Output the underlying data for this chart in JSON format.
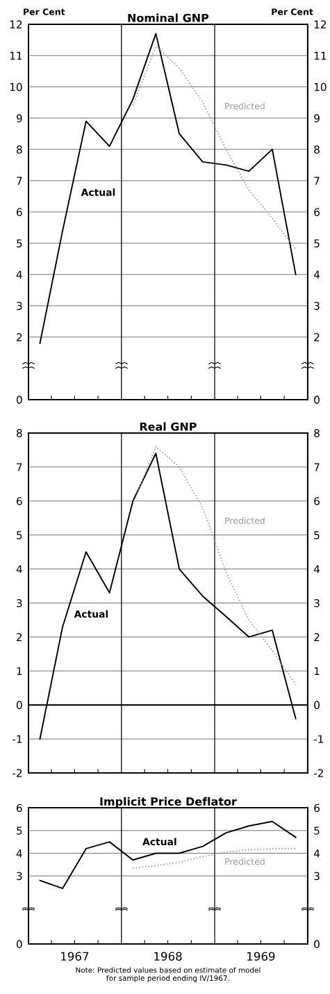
{
  "chart_data": [
    {
      "type": "line",
      "title": "Nominal GNP",
      "ylabel": "Per Cent",
      "y2label": "Per Cent",
      "xlim": [
        "1967-01-01",
        "1970-01-01"
      ],
      "xticks": [
        {
          "value": "1967-04-01",
          "label": null
        },
        {
          "value": "1967-07-01",
          "label": null
        },
        {
          "value": "1967-10-01",
          "label": null
        },
        {
          "value": "1968-04-01",
          "label": null
        },
        {
          "value": "1968-07-01",
          "label": null
        },
        {
          "value": "1968-10-01",
          "label": null
        },
        {
          "value": "1969-04-01",
          "label": null
        },
        {
          "value": "1969-07-01",
          "label": null
        },
        {
          "value": "1969-10-01",
          "label": null
        }
      ],
      "ylim": [
        0,
        12
      ],
      "yticks": [
        0,
        2,
        3,
        4,
        5,
        6,
        7,
        8,
        9,
        10,
        11,
        12
      ],
      "y2lim": [
        0,
        12
      ],
      "y2ticks": [
        0,
        2,
        3,
        4,
        5,
        6,
        7,
        8,
        9,
        10,
        11,
        12
      ],
      "tick_labels": "y",
      "grid": "y",
      "ref_lines": [
        {
          "axis": "x",
          "value": "1968-01-01",
          "color": "#000000"
        },
        {
          "axis": "x",
          "value": "1969-01-01",
          "color": "#000000"
        }
      ],
      "x": [
        "1967-02-15",
        "1967-05-15",
        "1967-08-15",
        "1967-11-15",
        "1968-02-15",
        "1968-05-15",
        "1968-08-15",
        "1968-11-15",
        "1969-02-15",
        "1969-05-15",
        "1969-08-15",
        "1969-11-15"
      ],
      "series": [
        {
          "color": "#000000",
          "line_style": "solid",
          "values": [
            1.8,
            5.4,
            8.9,
            8.1,
            9.6,
            11.7,
            8.5,
            7.6,
            7.5,
            7.3,
            8.0,
            4.0
          ]
        },
        {
          "color": "#999999",
          "line_style": "dotted",
          "values": [
            null,
            null,
            null,
            null,
            9.4,
            11.3,
            10.6,
            9.5,
            8.0,
            6.7,
            5.8,
            4.8
          ]
        }
      ],
      "annotations": [
        "Actual",
        "Predicted"
      ]
    },
    {
      "type": "line",
      "title": "Real GNP",
      "xlim": [
        "1967-01-01",
        "1970-01-01"
      ],
      "xticks": [
        {
          "value": "1967-04-01",
          "label": null
        },
        {
          "value": "1967-07-01",
          "label": null
        },
        {
          "value": "1967-10-01",
          "label": null
        },
        {
          "value": "1968-04-01",
          "label": null
        },
        {
          "value": "1968-07-01",
          "label": null
        },
        {
          "value": "1968-10-01",
          "label": null
        },
        {
          "value": "1969-04-01",
          "label": null
        },
        {
          "value": "1969-07-01",
          "label": null
        },
        {
          "value": "1969-10-01",
          "label": null
        }
      ],
      "ylim": [
        -2,
        8
      ],
      "yticks": [
        -2,
        -1,
        0,
        1,
        2,
        3,
        4,
        5,
        6,
        7,
        8
      ],
      "y2lim": [
        -2,
        8
      ],
      "y2ticks": [
        -2,
        -1,
        0,
        1,
        2,
        3,
        4,
        5,
        6,
        7,
        8
      ],
      "tick_labels": "y",
      "grid": "y",
      "ref_lines": [
        {
          "axis": "x",
          "value": "1968-01-01",
          "color": "#000000"
        },
        {
          "axis": "x",
          "value": "1969-01-01",
          "color": "#000000"
        },
        {
          "axis": "y",
          "value": 0,
          "color": "#000000"
        }
      ],
      "x": [
        "1967-02-15",
        "1967-05-15",
        "1967-08-15",
        "1967-11-15",
        "1968-02-15",
        "1968-05-15",
        "1968-08-15",
        "1968-11-15",
        "1969-02-15",
        "1969-05-15",
        "1969-08-15",
        "1969-11-15"
      ],
      "series": [
        {
          "color": "#000000",
          "line_style": "solid",
          "values": [
            -1.0,
            2.3,
            4.5,
            3.3,
            6.0,
            7.4,
            4.0,
            3.2,
            2.6,
            2.0,
            2.2,
            -0.4
          ]
        },
        {
          "color": "#999999",
          "line_style": "dotted",
          "values": [
            null,
            null,
            null,
            null,
            5.9,
            7.6,
            7.0,
            5.8,
            3.9,
            2.5,
            1.6,
            0.6
          ]
        }
      ],
      "annotations": [
        "Actual",
        "Predicted"
      ]
    },
    {
      "type": "line",
      "title": "Implicit Price Deflator",
      "xlim": [
        "1967-01-01",
        "1970-01-01"
      ],
      "xticks": [
        {
          "value": "1967-04-01",
          "label": null
        },
        {
          "value": "1967-07-01",
          "label": "1967"
        },
        {
          "value": "1967-10-01",
          "label": null
        },
        {
          "value": "1968-04-01",
          "label": null
        },
        {
          "value": "1968-07-01",
          "label": "1968"
        },
        {
          "value": "1968-10-01",
          "label": null
        },
        {
          "value": "1969-04-01",
          "label": null
        },
        {
          "value": "1969-07-01",
          "label": "1969"
        },
        {
          "value": "1969-10-01",
          "label": null
        }
      ],
      "ylim": [
        0,
        6
      ],
      "yticks": [
        0,
        3,
        4,
        5,
        6
      ],
      "y2lim": [
        0,
        6
      ],
      "y2ticks": [
        0,
        3,
        4,
        5,
        6
      ],
      "grid": "y",
      "ref_lines": [
        {
          "axis": "x",
          "value": "1968-01-01",
          "color": "#000000"
        },
        {
          "axis": "x",
          "value": "1969-01-01",
          "color": "#000000"
        }
      ],
      "x": [
        "1967-02-15",
        "1967-05-15",
        "1967-08-15",
        "1967-11-15",
        "1968-02-15",
        "1968-05-15",
        "1968-08-15",
        "1968-11-15",
        "1969-02-15",
        "1969-05-15",
        "1969-08-15",
        "1969-11-15"
      ],
      "series": [
        {
          "color": "#000000",
          "line_style": "solid",
          "values": [
            2.8,
            2.45,
            4.2,
            4.5,
            3.7,
            4.0,
            4.0,
            4.3,
            4.9,
            5.2,
            5.4,
            4.7
          ]
        },
        {
          "color": "#999999",
          "line_style": "dotted",
          "values": [
            null,
            null,
            null,
            null,
            3.35,
            3.45,
            3.6,
            3.85,
            4.05,
            4.15,
            4.2,
            4.2
          ]
        }
      ],
      "annotations": [
        "Actual",
        "Predicted",
        "Note: Predicted values based on estimate of model\nfor sample period ending IV/1967."
      ]
    }
  ]
}
